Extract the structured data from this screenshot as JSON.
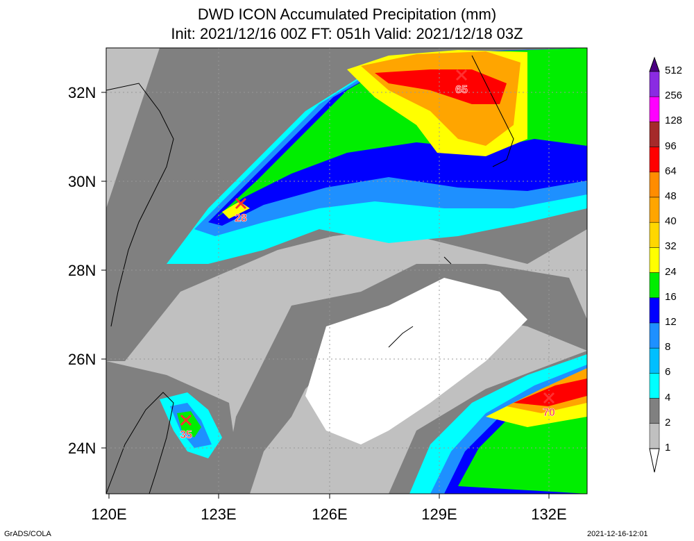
{
  "header": {
    "title": "DWD ICON Accumulated Precipitation (mm)",
    "subtitle": "Init: 2021/12/16 00Z  FT: 051h  Valid: 2021/12/18 03Z"
  },
  "axes": {
    "lat_labels": [
      "32N",
      "30N",
      "28N",
      "26N",
      "24N"
    ],
    "lon_labels": [
      "120E",
      "123E",
      "126E",
      "129E",
      "132E"
    ]
  },
  "colorbar": {
    "levels": [
      "512",
      "256",
      "128",
      "96",
      "64",
      "48",
      "40",
      "32",
      "24",
      "16",
      "12",
      "8",
      "6",
      "4",
      "2",
      "1"
    ],
    "colors": [
      "#4b0082",
      "#8a2be2",
      "#ff00ff",
      "#a52a2a",
      "#ff0000",
      "#ff8c00",
      "#ffa500",
      "#ffd700",
      "#ffff00",
      "#00ee00",
      "#0000ff",
      "#1e90ff",
      "#00bfff",
      "#00ffff",
      "#808080",
      "#c0c0c0"
    ]
  },
  "maxima": [
    {
      "value": "65"
    },
    {
      "value": "28"
    },
    {
      "value": "35"
    },
    {
      "value": "70"
    }
  ],
  "footer": {
    "left": "GrADS/COLA",
    "right": "2021-12-16-12:01"
  }
}
